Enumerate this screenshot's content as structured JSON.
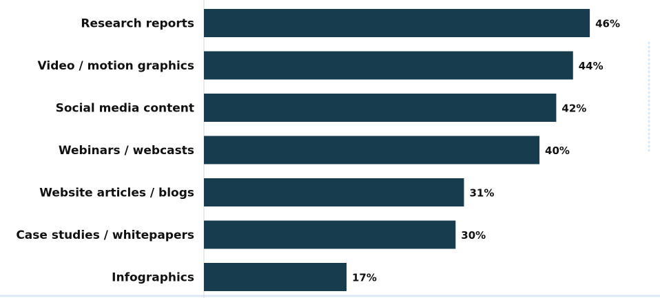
{
  "chart_data": {
    "type": "bar",
    "orientation": "horizontal",
    "categories": [
      "Research reports",
      "Video / motion graphics",
      "Social media content",
      "Webinars / webcasts",
      "Website articles / blogs",
      "Case studies / whitepapers",
      "Infographics"
    ],
    "values": [
      46,
      44,
      42,
      40,
      31,
      30,
      17
    ],
    "value_labels": [
      "46%",
      "44%",
      "42%",
      "40%",
      "31%",
      "30%",
      "17%"
    ],
    "unit": "%",
    "xlim": [
      0,
      51
    ],
    "grid": false,
    "legend": "none",
    "colors": {
      "bar": "#173c4e",
      "axis": "#d9d9d9",
      "dotted_border": "#dbe7f2",
      "text": "#111111"
    }
  }
}
